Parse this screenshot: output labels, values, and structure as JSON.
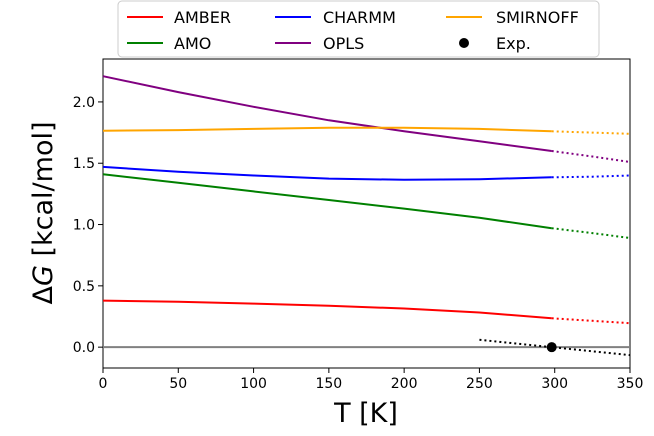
{
  "chart_data": {
    "type": "line",
    "xlabel": "T [K]",
    "ylabel_prefix": "Δ",
    "ylabel_var": "G",
    "ylabel_suffix": " [kcal/mol]",
    "xlim": [
      0,
      350
    ],
    "ylim": [
      -0.17,
      2.35
    ],
    "xticks": [
      0,
      50,
      100,
      150,
      200,
      250,
      300,
      350
    ],
    "yticks": [
      0.0,
      0.5,
      1.0,
      1.5,
      2.0
    ],
    "ytick_labels": [
      "0.0",
      "0.5",
      "1.0",
      "1.5",
      "2.0"
    ],
    "solid_range": [
      0,
      298
    ],
    "extrap_range": [
      298,
      350
    ],
    "zero_line": 0.0,
    "legend_position": "top-center",
    "legend_ncol": 3,
    "series": [
      {
        "name": "AMBER",
        "color": "#ff0000",
        "x": [
          0,
          50,
          100,
          150,
          200,
          250,
          298,
          325,
          350
        ],
        "y": [
          0.38,
          0.37,
          0.355,
          0.337,
          0.315,
          0.283,
          0.235,
          0.215,
          0.195
        ]
      },
      {
        "name": "AMO",
        "color": "#008000",
        "x": [
          0,
          50,
          100,
          150,
          200,
          250,
          298,
          325,
          350
        ],
        "y": [
          1.41,
          1.34,
          1.27,
          1.2,
          1.13,
          1.055,
          0.97,
          0.93,
          0.89
        ]
      },
      {
        "name": "CHARMM",
        "color": "#0000ff",
        "x": [
          0,
          50,
          100,
          150,
          200,
          250,
          298,
          325,
          350
        ],
        "y": [
          1.47,
          1.43,
          1.4,
          1.375,
          1.365,
          1.37,
          1.385,
          1.39,
          1.4
        ]
      },
      {
        "name": "OPLS",
        "color": "#800080",
        "x": [
          0,
          50,
          100,
          150,
          200,
          250,
          298,
          325,
          350
        ],
        "y": [
          2.21,
          2.08,
          1.96,
          1.85,
          1.76,
          1.68,
          1.6,
          1.555,
          1.51
        ]
      },
      {
        "name": "SMIRNOFF",
        "color": "#ffa500",
        "x": [
          0,
          50,
          100,
          150,
          200,
          250,
          298,
          325,
          350
        ],
        "y": [
          1.765,
          1.77,
          1.78,
          1.79,
          1.79,
          1.78,
          1.76,
          1.75,
          1.74
        ]
      }
    ],
    "experiment": {
      "name": "Exp.",
      "point": {
        "x": 298,
        "y": 0.0
      },
      "trend_x": [
        250,
        350
      ],
      "trend_y": [
        0.06,
        -0.065
      ]
    }
  }
}
